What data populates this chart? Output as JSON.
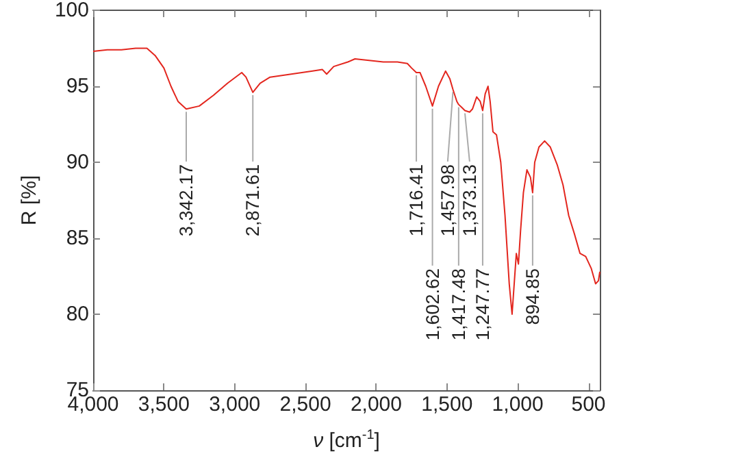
{
  "chart_data": {
    "type": "line",
    "xlabel": "ν [cm$^{-1}$]",
    "ylabel": "R [%]",
    "xlim": [
      4000,
      420
    ],
    "ylim": [
      75,
      100
    ],
    "xticks": [
      {
        "value": 4000,
        "label": "4,000"
      },
      {
        "value": 3500,
        "label": "3,500"
      },
      {
        "value": 3000,
        "label": "3,000"
      },
      {
        "value": 2500,
        "label": "2,500"
      },
      {
        "value": 2000,
        "label": "2,000"
      },
      {
        "value": 1500,
        "label": "1,500"
      },
      {
        "value": 1000,
        "label": "1,000"
      },
      500
    ],
    "yticks": [
      75,
      80,
      85,
      90,
      95,
      100
    ],
    "grid": false,
    "marker": "none",
    "line_style": "solid",
    "x": [
      4000,
      3900,
      3800,
      3700,
      3620,
      3560,
      3500,
      3450,
      3400,
      3342.17,
      3250,
      3150,
      3050,
      2950,
      2920,
      2871.61,
      2820,
      2750,
      2600,
      2450,
      2380,
      2350,
      2300,
      2200,
      2150,
      2050,
      1950,
      1850,
      1780,
      1750,
      1716.41,
      1690,
      1650,
      1602.62,
      1560,
      1510,
      1480,
      1457.98,
      1430,
      1417.48,
      1395,
      1373.13,
      1340,
      1320,
      1290,
      1265,
      1247.77,
      1230,
      1210,
      1195,
      1175,
      1150,
      1120,
      1090,
      1060,
      1040,
      1025,
      1010,
      995,
      980,
      960,
      935,
      910,
      894.85,
      880,
      850,
      810,
      770,
      720,
      680,
      640,
      600,
      560,
      520,
      480,
      450,
      430,
      420
    ],
    "series": [
      {
        "color": "#e3261e",
        "values": [
          97.3,
          97.4,
          97.4,
          97.5,
          97.5,
          97.0,
          96.2,
          95.0,
          94.0,
          93.5,
          93.7,
          94.4,
          95.2,
          95.9,
          95.6,
          94.6,
          95.2,
          95.6,
          95.8,
          96.0,
          96.1,
          95.8,
          96.3,
          96.6,
          96.8,
          96.7,
          96.6,
          96.6,
          96.5,
          96.2,
          95.9,
          95.9,
          95.0,
          93.7,
          95.0,
          96.0,
          95.5,
          94.8,
          94.0,
          93.8,
          93.6,
          93.4,
          93.3,
          93.5,
          94.3,
          94.0,
          93.4,
          94.5,
          95.0,
          94.0,
          92.0,
          91.8,
          90.0,
          86.5,
          82.0,
          80.0,
          82.0,
          84.0,
          83.3,
          85.5,
          88.0,
          89.5,
          89.0,
          88.0,
          90.0,
          91.0,
          91.4,
          91.0,
          89.8,
          88.5,
          86.5,
          85.3,
          84.0,
          83.8,
          83.0,
          82.0,
          82.2,
          82.8
        ]
      }
    ],
    "annotations": [
      {
        "text": "3,342.17",
        "x": 3342.17,
        "y": 93.5
      },
      {
        "text": "2,871.61",
        "x": 2871.61,
        "y": 94.6
      },
      {
        "text": "1,716.41",
        "x": 1716.41,
        "y": 95.9
      },
      {
        "text": "1,602.62",
        "x": 1602.62,
        "y": 93.7
      },
      {
        "text": "1,457.98",
        "x": 1457.98,
        "y": 94.8
      },
      {
        "text": "1,417.48",
        "x": 1417.48,
        "y": 93.8
      },
      {
        "text": "1,373.13",
        "x": 1373.13,
        "y": 93.4
      },
      {
        "text": "1,247.77",
        "x": 1247.77,
        "y": 93.4
      },
      {
        "text": "894.85",
        "x": 894.85,
        "y": 88.0
      }
    ]
  }
}
